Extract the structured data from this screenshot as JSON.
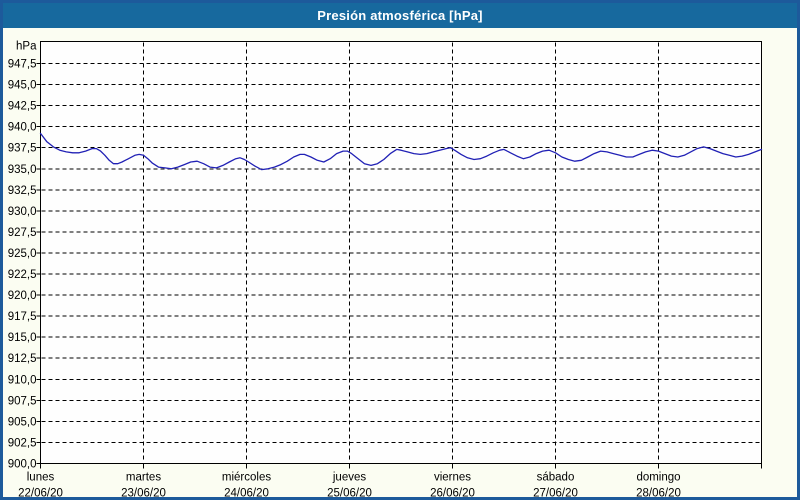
{
  "window": {
    "title": "Presión atmosférica [hPa]",
    "colors": {
      "titlebar": "#17699e",
      "border": "#1d5a9b",
      "background": "#fbfdf2",
      "plot_background": "#fefefe",
      "grid": "#000000",
      "line": "#2121b5",
      "text": "#000000"
    }
  },
  "chart_data": {
    "type": "line",
    "title": "Presión atmosférica [hPa]",
    "ylabel": "hPa",
    "ylim": [
      900,
      950
    ],
    "ytick_step": 2.5,
    "ytick_labels": [
      "947,5",
      "945,0",
      "942,5",
      "940,0",
      "937,5",
      "935,0",
      "932,5",
      "930,0",
      "927,5",
      "925,0",
      "922,5",
      "920,0",
      "917,5",
      "915,0",
      "912,5",
      "910,0",
      "907,5",
      "905,0",
      "902,5",
      "900,0"
    ],
    "grid": true,
    "grid_style": "dashed",
    "legend_position": "none",
    "x_unit": "hours",
    "xlim": [
      0,
      168
    ],
    "x_days": [
      {
        "name": "lunes",
        "date": "22/06/20",
        "start_hour": 0
      },
      {
        "name": "martes",
        "date": "23/06/20",
        "start_hour": 24
      },
      {
        "name": "miércoles",
        "date": "24/06/20",
        "start_hour": 48
      },
      {
        "name": "jueves",
        "date": "25/06/20",
        "start_hour": 72
      },
      {
        "name": "viernes",
        "date": "26/06/20",
        "start_hour": 96
      },
      {
        "name": "sábado",
        "date": "27/06/20",
        "start_hour": 120
      },
      {
        "name": "domingo",
        "date": "28/06/20",
        "start_hour": 144
      }
    ],
    "series": [
      {
        "name": "Presión atmosférica",
        "color": "#2121b5",
        "points": [
          [
            0,
            939.2
          ],
          [
            1.5,
            938.2
          ],
          [
            3,
            937.6
          ],
          [
            4.5,
            937.2
          ],
          [
            6,
            937.0
          ],
          [
            7.5,
            936.9
          ],
          [
            9,
            936.9
          ],
          [
            10.5,
            937.1
          ],
          [
            12,
            937.4
          ],
          [
            13,
            937.4
          ],
          [
            14,
            937.1
          ],
          [
            15,
            936.6
          ],
          [
            16,
            936.0
          ],
          [
            17,
            935.6
          ],
          [
            18,
            935.6
          ],
          [
            19,
            935.8
          ],
          [
            20.5,
            936.2
          ],
          [
            22,
            936.6
          ],
          [
            23,
            936.7
          ],
          [
            24,
            936.6
          ],
          [
            25,
            936.2
          ],
          [
            26,
            935.7
          ],
          [
            27.5,
            935.2
          ],
          [
            29,
            935.1
          ],
          [
            30.5,
            935.0
          ],
          [
            32,
            935.2
          ],
          [
            33.5,
            935.5
          ],
          [
            35,
            935.8
          ],
          [
            36.5,
            935.9
          ],
          [
            38,
            935.6
          ],
          [
            39.5,
            935.2
          ],
          [
            41,
            935.1
          ],
          [
            42.5,
            935.4
          ],
          [
            44,
            935.8
          ],
          [
            45.5,
            936.2
          ],
          [
            46.5,
            936.3
          ],
          [
            47.5,
            936.1
          ],
          [
            48.5,
            935.8
          ],
          [
            50,
            935.3
          ],
          [
            51.5,
            934.9
          ],
          [
            53,
            935.0
          ],
          [
            54.5,
            935.2
          ],
          [
            56,
            935.5
          ],
          [
            57.5,
            935.9
          ],
          [
            59,
            936.4
          ],
          [
            60.5,
            936.7
          ],
          [
            61.5,
            936.7
          ],
          [
            63,
            936.4
          ],
          [
            64.5,
            936.0
          ],
          [
            66,
            935.8
          ],
          [
            67.5,
            936.2
          ],
          [
            69,
            936.8
          ],
          [
            70.5,
            937.1
          ],
          [
            71.5,
            937.1
          ],
          [
            72.5,
            936.8
          ],
          [
            74,
            936.2
          ],
          [
            75.5,
            935.6
          ],
          [
            77,
            935.4
          ],
          [
            78.5,
            935.6
          ],
          [
            80,
            936.1
          ],
          [
            81.5,
            936.8
          ],
          [
            83,
            937.3
          ],
          [
            84,
            937.2
          ],
          [
            85.5,
            937.0
          ],
          [
            87,
            936.8
          ],
          [
            88.5,
            936.7
          ],
          [
            90,
            936.8
          ],
          [
            91.5,
            937.0
          ],
          [
            93,
            937.2
          ],
          [
            94.5,
            937.4
          ],
          [
            95.5,
            937.5
          ],
          [
            96.5,
            937.2
          ],
          [
            98,
            936.7
          ],
          [
            99.5,
            936.3
          ],
          [
            101,
            936.1
          ],
          [
            102.5,
            936.2
          ],
          [
            104,
            936.5
          ],
          [
            105.5,
            936.9
          ],
          [
            107,
            937.2
          ],
          [
            108,
            937.3
          ],
          [
            109.5,
            936.9
          ],
          [
            111,
            936.5
          ],
          [
            112.5,
            936.2
          ],
          [
            114,
            936.4
          ],
          [
            115.5,
            936.8
          ],
          [
            117,
            937.1
          ],
          [
            118.5,
            937.2
          ],
          [
            120,
            936.9
          ],
          [
            121.5,
            936.4
          ],
          [
            123,
            936.1
          ],
          [
            124.5,
            935.9
          ],
          [
            126,
            936.0
          ],
          [
            127.5,
            936.4
          ],
          [
            129,
            936.8
          ],
          [
            130.5,
            937.1
          ],
          [
            132,
            937.0
          ],
          [
            133.5,
            936.8
          ],
          [
            135,
            936.6
          ],
          [
            136.5,
            936.4
          ],
          [
            138,
            936.4
          ],
          [
            139.5,
            936.7
          ],
          [
            141,
            937.0
          ],
          [
            142.5,
            937.2
          ],
          [
            144,
            937.1
          ],
          [
            145.5,
            936.8
          ],
          [
            147,
            936.5
          ],
          [
            148.5,
            936.4
          ],
          [
            150,
            936.6
          ],
          [
            151.5,
            937.0
          ],
          [
            153,
            937.4
          ],
          [
            154.5,
            937.6
          ],
          [
            156,
            937.4
          ],
          [
            157.5,
            937.1
          ],
          [
            159,
            936.8
          ],
          [
            160.5,
            936.6
          ],
          [
            162,
            936.4
          ],
          [
            163.5,
            936.5
          ],
          [
            165,
            936.7
          ],
          [
            166.5,
            937.0
          ],
          [
            168,
            937.3
          ]
        ]
      }
    ]
  }
}
